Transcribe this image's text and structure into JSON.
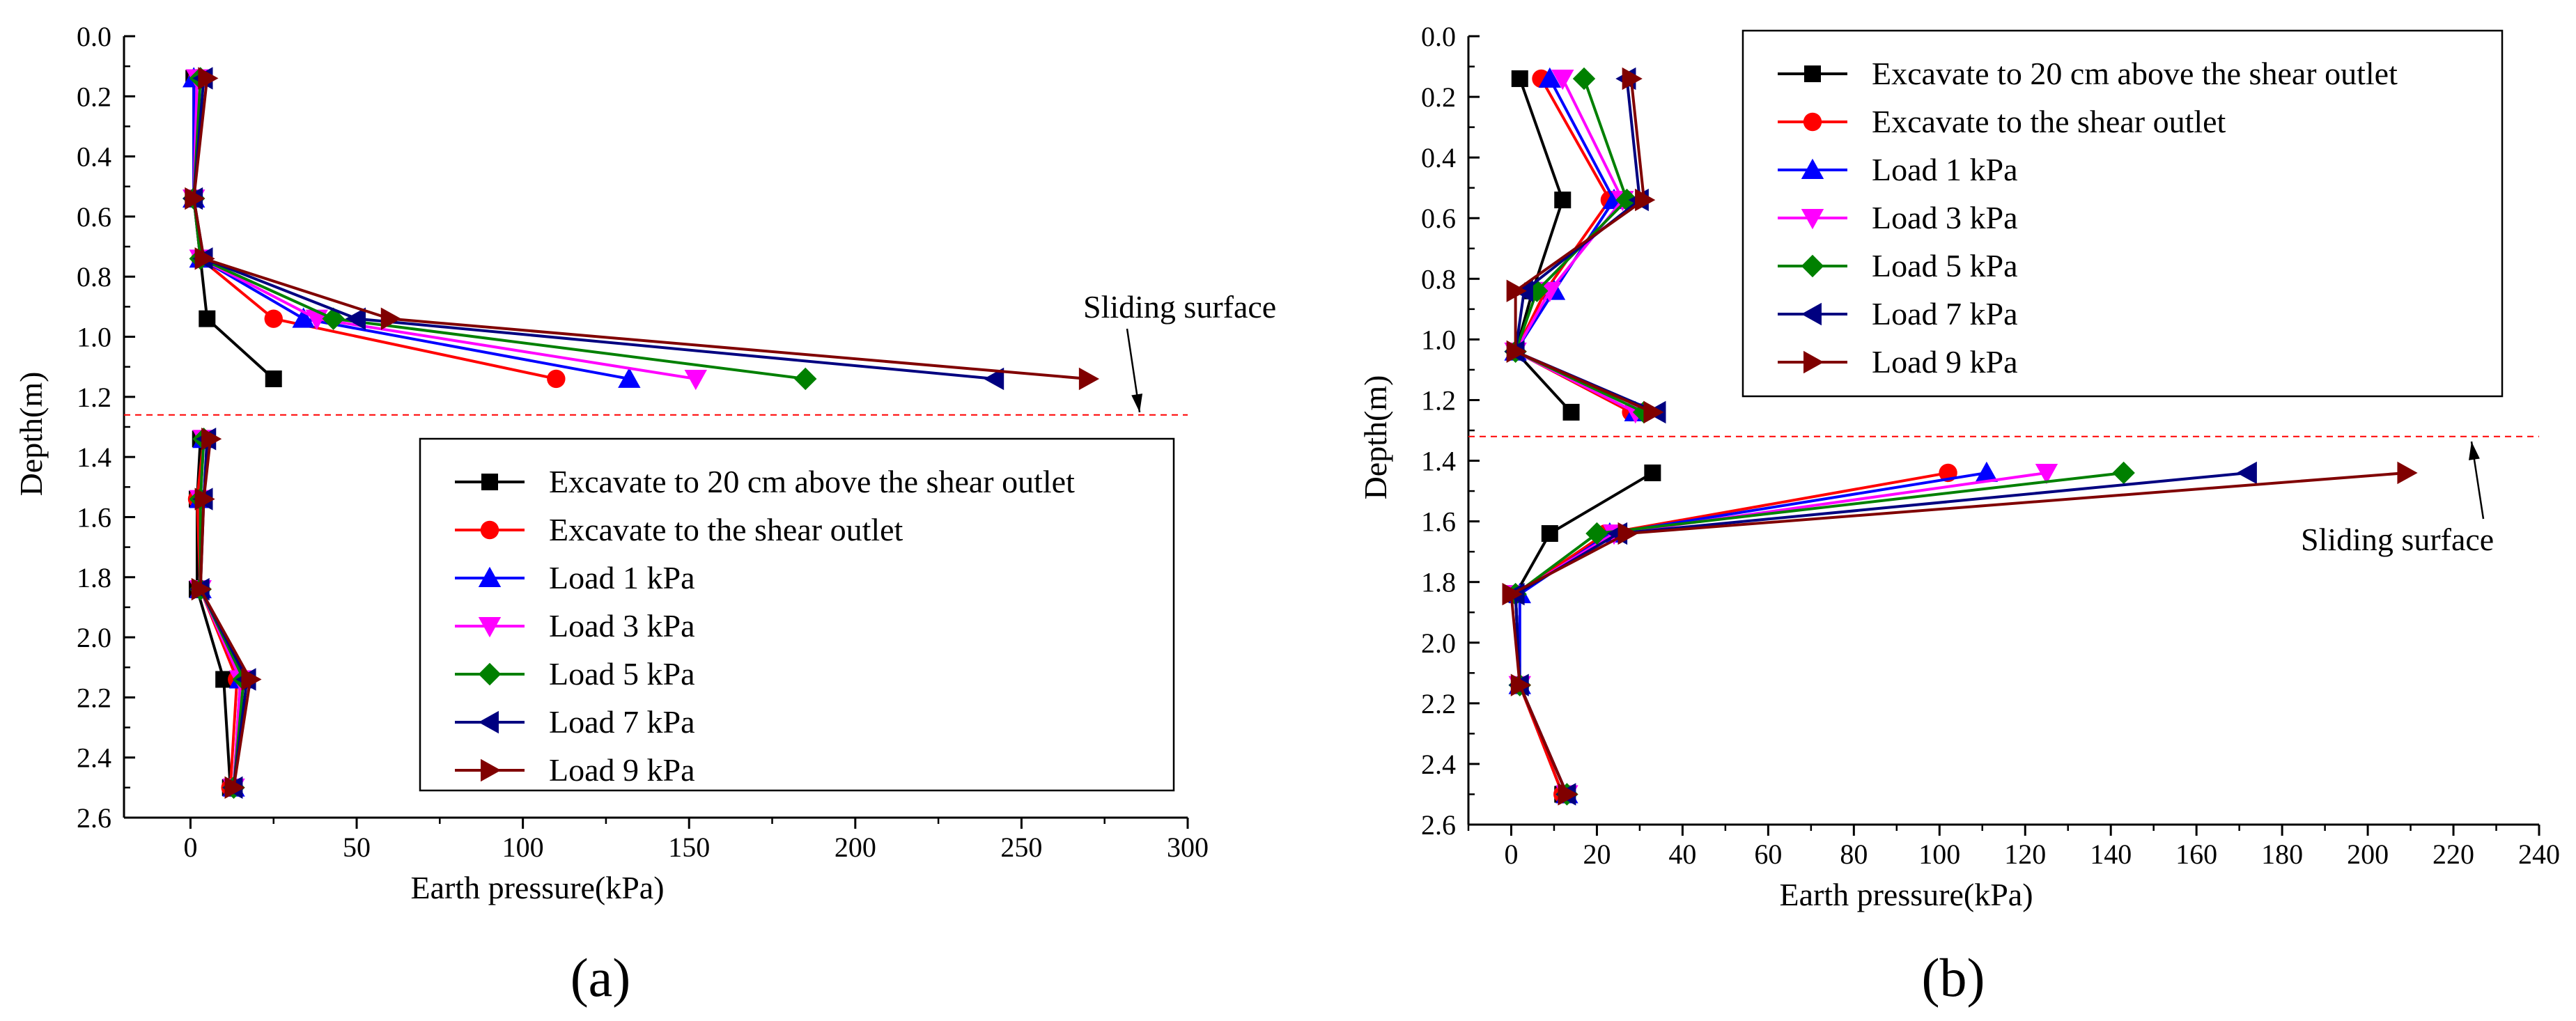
{
  "chart_data": [
    {
      "type": "line",
      "panel_label": "(a)",
      "xlabel": "Earth pressure(kPa)",
      "ylabel": "Depth(m)",
      "xlim": [
        -20,
        300
      ],
      "ylim": [
        2.6,
        0.0
      ],
      "xticks": [
        0,
        50,
        100,
        150,
        200,
        250,
        300
      ],
      "yticks": [
        0.0,
        0.2,
        0.4,
        0.6,
        0.8,
        1.0,
        1.2,
        1.4,
        1.6,
        1.8,
        2.0,
        2.2,
        2.4,
        2.6
      ],
      "legend_position": "lower-right",
      "sliding_surface": {
        "label": "Sliding surface",
        "depth": 1.26
      },
      "series": [
        {
          "name": "Excavate to 20 cm above the shear outlet",
          "color": "#000000",
          "marker": "square",
          "upper": [
            [
              1,
              0.14
            ],
            [
              1,
              0.54
            ],
            [
              3,
              0.74
            ],
            [
              5,
              0.94
            ],
            [
              25,
              1.14
            ]
          ],
          "lower": [
            [
              3,
              1.34
            ],
            [
              2,
              1.54
            ],
            [
              2,
              1.84
            ],
            [
              10,
              2.14
            ],
            [
              12,
              2.5
            ]
          ]
        },
        {
          "name": "Excavate to the shear outlet",
          "color": "#ff0000",
          "marker": "circle",
          "upper": [
            [
              2,
              0.14
            ],
            [
              1,
              0.54
            ],
            [
              3,
              0.74
            ],
            [
              25,
              0.94
            ],
            [
              110,
              1.14
            ]
          ],
          "lower": [
            [
              4,
              1.34
            ],
            [
              2,
              1.54
            ],
            [
              3,
              1.84
            ],
            [
              14,
              2.14
            ],
            [
              12,
              2.5
            ]
          ]
        },
        {
          "name": "Load 1 kPa",
          "color": "#0000ff",
          "marker": "triangle-up",
          "upper": [
            [
              1,
              0.14
            ],
            [
              1,
              0.54
            ],
            [
              3,
              0.74
            ],
            [
              34,
              0.94
            ],
            [
              132,
              1.14
            ]
          ],
          "lower": [
            [
              4,
              1.34
            ],
            [
              3,
              1.54
            ],
            [
              3,
              1.84
            ],
            [
              15,
              2.14
            ],
            [
              13,
              2.5
            ]
          ]
        },
        {
          "name": "Load 3 kPa",
          "color": "#ff00ff",
          "marker": "triangle-down",
          "upper": [
            [
              2,
              0.14
            ],
            [
              1,
              0.54
            ],
            [
              3,
              0.74
            ],
            [
              38,
              0.94
            ],
            [
              152,
              1.14
            ]
          ],
          "lower": [
            [
              4,
              1.34
            ],
            [
              3,
              1.54
            ],
            [
              3,
              1.84
            ],
            [
              15,
              2.14
            ],
            [
              13,
              2.5
            ]
          ]
        },
        {
          "name": "Load 5 kPa",
          "color": "#008000",
          "marker": "diamond",
          "upper": [
            [
              3,
              0.14
            ],
            [
              1,
              0.54
            ],
            [
              3,
              0.74
            ],
            [
              43,
              0.94
            ],
            [
              185,
              1.14
            ]
          ],
          "lower": [
            [
              4,
              1.34
            ],
            [
              3,
              1.54
            ],
            [
              3,
              1.84
            ],
            [
              16,
              2.14
            ],
            [
              13,
              2.5
            ]
          ]
        },
        {
          "name": "Load 7 kPa",
          "color": "#000080",
          "marker": "triangle-left",
          "upper": [
            [
              4,
              0.14
            ],
            [
              1,
              0.54
            ],
            [
              4,
              0.74
            ],
            [
              50,
              0.94
            ],
            [
              242,
              1.14
            ]
          ],
          "lower": [
            [
              5,
              1.34
            ],
            [
              4,
              1.54
            ],
            [
              3,
              1.84
            ],
            [
              17,
              2.14
            ],
            [
              13,
              2.5
            ]
          ]
        },
        {
          "name": "Load 9 kPa",
          "color": "#800000",
          "marker": "triangle-right",
          "upper": [
            [
              5,
              0.14
            ],
            [
              1,
              0.54
            ],
            [
              4,
              0.74
            ],
            [
              60,
              0.94
            ],
            [
              270,
              1.14
            ]
          ],
          "lower": [
            [
              6,
              1.34
            ],
            [
              4,
              1.54
            ],
            [
              3,
              1.84
            ],
            [
              18,
              2.14
            ],
            [
              13,
              2.5
            ]
          ]
        }
      ]
    },
    {
      "type": "line",
      "panel_label": "(b)",
      "xlabel": "Earth pressure(kPa)",
      "ylabel": "Depth(m)",
      "xlim": [
        -10,
        240
      ],
      "ylim": [
        2.6,
        0.0
      ],
      "xticks": [
        0,
        20,
        40,
        60,
        80,
        100,
        120,
        140,
        160,
        180,
        200,
        220,
        240
      ],
      "yticks": [
        0.0,
        0.2,
        0.4,
        0.6,
        0.8,
        1.0,
        1.2,
        1.4,
        1.6,
        1.8,
        2.0,
        2.2,
        2.4,
        2.6
      ],
      "legend_position": "top-right",
      "sliding_surface": {
        "label": "Sliding surface",
        "depth": 1.32
      },
      "series": [
        {
          "name": "Excavate to 20 cm above the shear outlet",
          "color": "#000000",
          "marker": "square",
          "upper": [
            [
              2,
              0.14
            ],
            [
              12,
              0.54
            ],
            [
              5,
              0.84
            ],
            [
              1,
              1.04
            ],
            [
              14,
              1.24
            ]
          ],
          "lower": [
            [
              33,
              1.44
            ],
            [
              9,
              1.64
            ],
            [
              1,
              1.84
            ],
            [
              2,
              2.14
            ],
            [
              12,
              2.5
            ]
          ]
        },
        {
          "name": "Excavate to the shear outlet",
          "color": "#ff0000",
          "marker": "circle",
          "upper": [
            [
              7,
              0.14
            ],
            [
              23,
              0.54
            ],
            [
              8,
              0.84
            ],
            [
              1,
              1.04
            ],
            [
              28,
              1.24
            ]
          ],
          "lower": [
            [
              102,
              1.44
            ],
            [
              22,
              1.64
            ],
            [
              1,
              1.84
            ],
            [
              2,
              2.14
            ],
            [
              12,
              2.5
            ]
          ]
        },
        {
          "name": "Load 1 kPa",
          "color": "#0000ff",
          "marker": "triangle-up",
          "upper": [
            [
              9,
              0.14
            ],
            [
              24,
              0.54
            ],
            [
              10,
              0.84
            ],
            [
              1,
              1.04
            ],
            [
              29,
              1.24
            ]
          ],
          "lower": [
            [
              111,
              1.44
            ],
            [
              23,
              1.64
            ],
            [
              2,
              1.84
            ],
            [
              2,
              2.14
            ],
            [
              13,
              2.5
            ]
          ]
        },
        {
          "name": "Load 3 kPa",
          "color": "#ff00ff",
          "marker": "triangle-down",
          "upper": [
            [
              12,
              0.14
            ],
            [
              26,
              0.54
            ],
            [
              9,
              0.84
            ],
            [
              1,
              1.04
            ],
            [
              29,
              1.24
            ]
          ],
          "lower": [
            [
              125,
              1.44
            ],
            [
              24,
              1.64
            ],
            [
              1,
              1.84
            ],
            [
              2,
              2.14
            ],
            [
              13,
              2.5
            ]
          ]
        },
        {
          "name": "Load 5 kPa",
          "color": "#008000",
          "marker": "diamond",
          "upper": [
            [
              17,
              0.14
            ],
            [
              27,
              0.54
            ],
            [
              6,
              0.84
            ],
            [
              1,
              1.04
            ],
            [
              31,
              1.24
            ]
          ],
          "lower": [
            [
              143,
              1.44
            ],
            [
              20,
              1.64
            ],
            [
              1,
              1.84
            ],
            [
              2,
              2.14
            ],
            [
              13,
              2.5
            ]
          ]
        },
        {
          "name": "Load 7 kPa",
          "color": "#000080",
          "marker": "triangle-left",
          "upper": [
            [
              27,
              0.14
            ],
            [
              30,
              0.54
            ],
            [
              3,
              0.84
            ],
            [
              1,
              1.04
            ],
            [
              34,
              1.24
            ]
          ],
          "lower": [
            [
              172,
              1.44
            ],
            [
              25,
              1.64
            ],
            [
              1,
              1.84
            ],
            [
              2,
              2.14
            ],
            [
              13,
              2.5
            ]
          ]
        },
        {
          "name": "Load 9 kPa",
          "color": "#800000",
          "marker": "triangle-right",
          "upper": [
            [
              28,
              0.14
            ],
            [
              31,
              0.54
            ],
            [
              1,
              0.84
            ],
            [
              1,
              1.04
            ],
            [
              33,
              1.24
            ]
          ],
          "lower": [
            [
              209,
              1.44
            ],
            [
              27,
              1.64
            ],
            [
              0,
              1.84
            ],
            [
              2,
              2.14
            ],
            [
              13,
              2.5
            ]
          ]
        }
      ]
    }
  ]
}
